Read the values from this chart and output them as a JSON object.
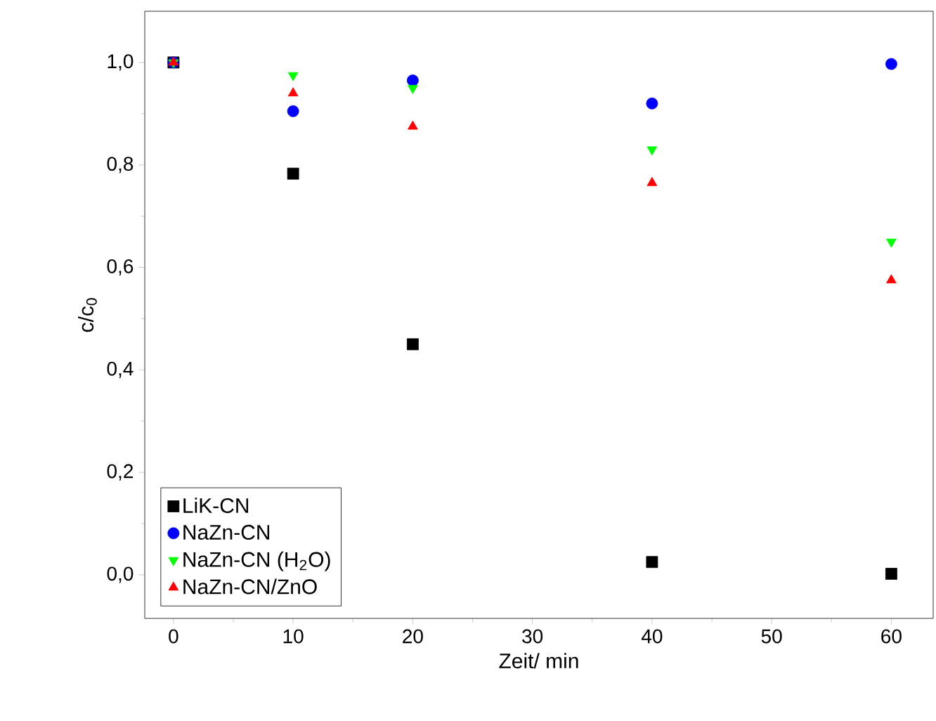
{
  "chart_data": {
    "type": "scatter",
    "xlabel": "Zeit/ min",
    "ylabel": "c/c$_{0}$",
    "x": [
      0,
      10,
      20,
      40,
      60
    ],
    "series": [
      {
        "name": "LiK-CN",
        "color": "#000000",
        "marker": "square",
        "values": [
          1.0,
          0.783,
          0.45,
          0.025,
          0.002
        ]
      },
      {
        "name": "NaZn-CN",
        "color": "#0000ff",
        "marker": "circle",
        "values": [
          1.0,
          0.905,
          0.965,
          0.92,
          0.997
        ]
      },
      {
        "name": "NaZn-CN (H$_{2}$O)",
        "color": "#00ff00",
        "marker": "triangle down",
        "values": [
          1.0,
          0.975,
          0.95,
          0.83,
          0.65
        ]
      },
      {
        "name": "NaZn-CN/ZnO",
        "color": "#ff0000",
        "marker": "triangle",
        "values": [
          1.0,
          0.94,
          0.875,
          0.765,
          0.575
        ]
      }
    ],
    "xlim": [
      -2.4,
      63.5
    ],
    "ylim": [
      -0.085,
      1.1
    ],
    "xticks": [
      0,
      10,
      20,
      30,
      40,
      50,
      60
    ],
    "yticks": [
      {
        "value": 0,
        "label": "0,0"
      },
      {
        "value": 0.2,
        "label": "0,2"
      },
      {
        "value": 0.4,
        "label": "0,4"
      },
      {
        "value": 0.6,
        "label": "0,6"
      },
      {
        "value": 0.8,
        "label": "0,8"
      },
      {
        "value": 1.0,
        "label": "1,0"
      }
    ],
    "grid": false,
    "legend": "bottom left"
  }
}
